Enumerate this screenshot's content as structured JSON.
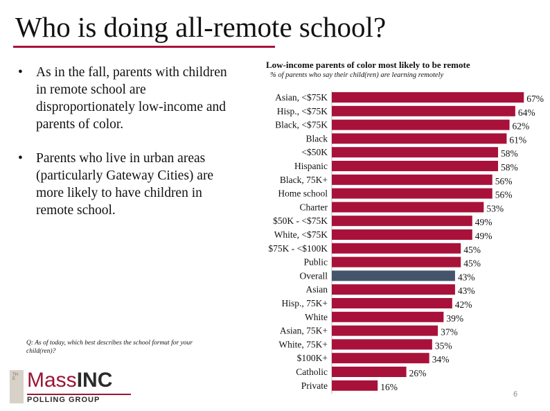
{
  "slide": {
    "title": "Who is doing all-remote school?",
    "bullets": [
      "As in the fall, parents with children in remote school are disproportionately low-income and parents of color.",
      "Parents who live in urban areas (particularly Gateway Cities) are more likely to have children in remote school."
    ],
    "bullet_glyph": "•",
    "question": "Q: As of today, which best describes the school format for your child(ren)?",
    "page_number": "6",
    "logo": {
      "the": "THE",
      "mass": "Mass",
      "inc": "INC",
      "polling_group": "POLLING GROUP"
    },
    "colors": {
      "accent": "#a8123a",
      "bar": "#a8123a",
      "overall_bar": "#44546a"
    }
  },
  "chart_data": {
    "type": "bar",
    "orientation": "horizontal",
    "title": "Low-income parents of color most likely to be remote",
    "subtitle": "% of parents who say their child(ren) are learning remotely",
    "categories": [
      "Asian, <$75K",
      "Hisp., <$75K",
      "Black, <$75K",
      "Black",
      "<$50K",
      "Hispanic",
      "Black, 75K+",
      "Home school",
      "Charter",
      "$50K - <$75K",
      "White, <$75K",
      "$75K - <$100K",
      "Public",
      "Overall",
      "Asian",
      "Hisp., 75K+",
      "White",
      "Asian, 75K+",
      "White, 75K+",
      "$100K+",
      "Catholic",
      "Private"
    ],
    "values": [
      67,
      64,
      62,
      61,
      58,
      58,
      56,
      56,
      53,
      49,
      49,
      45,
      45,
      43,
      43,
      42,
      39,
      37,
      35,
      34,
      26,
      16
    ],
    "value_labels": [
      "67%",
      "64%",
      "62%",
      "61%",
      "58%",
      "58%",
      "56%",
      "56%",
      "53%",
      "49%",
      "49%",
      "45%",
      "45%",
      "43%",
      "43%",
      "42%",
      "39%",
      "37%",
      "35%",
      "34%",
      "26%",
      "16%"
    ],
    "highlight_category": "Overall",
    "xlim": [
      0,
      100
    ],
    "grid": false,
    "legend": "none"
  }
}
